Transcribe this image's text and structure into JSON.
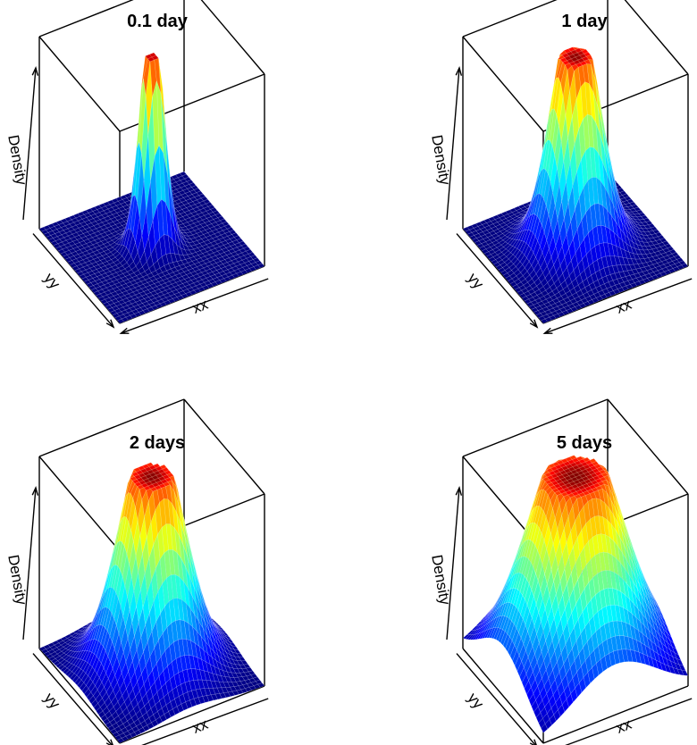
{
  "chart_data": [
    {
      "type": "surface",
      "title": "0.1 day",
      "xlabel": "xx",
      "ylabel": "yy",
      "zlabel": "Density",
      "t_days": 0.1,
      "grid": true,
      "colormap": [
        "#00007F",
        "#0000FF",
        "#007FFF",
        "#00FFFF",
        "#7FFF7F",
        "#FFFF00",
        "#FF7F00",
        "#FF0000",
        "#7F0000"
      ]
    },
    {
      "type": "surface",
      "title": "1 day",
      "xlabel": "xx",
      "ylabel": "yy",
      "zlabel": "Density",
      "t_days": 1,
      "grid": true,
      "colormap": [
        "#00007F",
        "#0000FF",
        "#007FFF",
        "#00FFFF",
        "#7FFF7F",
        "#FFFF00",
        "#FF7F00",
        "#FF0000",
        "#7F0000"
      ]
    },
    {
      "type": "surface",
      "title": "2 days",
      "xlabel": "xx",
      "ylabel": "yy",
      "zlabel": "Density",
      "t_days": 2,
      "grid": true,
      "colormap": [
        "#00007F",
        "#0000FF",
        "#007FFF",
        "#00FFFF",
        "#7FFF7F",
        "#FFFF00",
        "#FF7F00",
        "#FF0000",
        "#7F0000"
      ]
    },
    {
      "type": "surface",
      "title": "5 days",
      "xlabel": "xx",
      "ylabel": "yy",
      "zlabel": "Density",
      "t_days": 5,
      "grid": true,
      "colormap": [
        "#00007F",
        "#0000FF",
        "#007FFF",
        "#00FFFF",
        "#7FFF7F",
        "#FFFF00",
        "#FF7F00",
        "#FF0000",
        "#7F0000"
      ]
    }
  ]
}
